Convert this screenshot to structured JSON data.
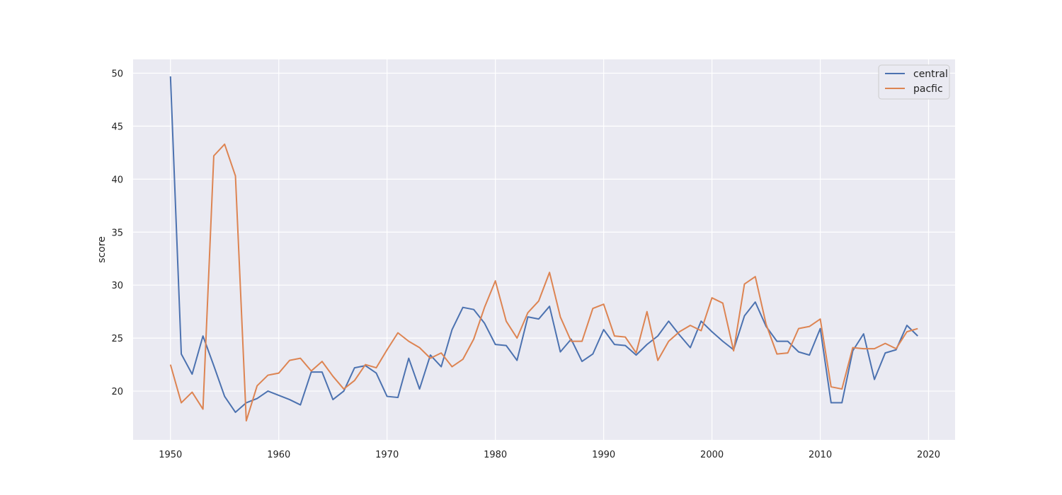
{
  "chart_data": {
    "type": "line",
    "title": "",
    "xlabel": "",
    "ylabel": "score",
    "xlim": [
      1946.55,
      1922.45
    ],
    "ylim": [
      15.4,
      51.3
    ],
    "xticks": [
      1950,
      1960,
      1970,
      1980,
      1990,
      2000,
      2010,
      2020
    ],
    "yticks": [
      20,
      25,
      30,
      35,
      40,
      45,
      50
    ],
    "grid": true,
    "legend": "top-right",
    "background": "#eaeaf2",
    "x": [
      1950,
      1951,
      1952,
      1953,
      1954,
      1955,
      1956,
      1957,
      1958,
      1959,
      1960,
      1961,
      1962,
      1963,
      1964,
      1965,
      1966,
      1967,
      1968,
      1969,
      1970,
      1971,
      1972,
      1973,
      1974,
      1975,
      1976,
      1977,
      1978,
      1979,
      1980,
      1981,
      1982,
      1983,
      1984,
      1985,
      1986,
      1987,
      1988,
      1989,
      1990,
      1991,
      1992,
      1993,
      1994,
      1995,
      1996,
      1997,
      1998,
      1999,
      2000,
      2001,
      2002,
      2003,
      2004,
      2005,
      2006,
      2007,
      2008,
      2009,
      2010,
      2011,
      2012,
      2013,
      2014,
      2015,
      2016,
      2017,
      2018,
      2019
    ],
    "series": [
      {
        "name": "central",
        "color": "#4c72b0",
        "values": [
          49.7,
          23.5,
          21.6,
          25.2,
          22.4,
          19.5,
          18.0,
          18.9,
          19.3,
          20.0,
          19.6,
          19.2,
          18.7,
          21.8,
          21.8,
          19.2,
          20.0,
          22.2,
          22.4,
          21.7,
          19.5,
          19.4,
          23.1,
          20.2,
          23.4,
          22.3,
          25.8,
          27.9,
          27.7,
          26.4,
          24.4,
          24.3,
          22.9,
          27.0,
          26.8,
          28.0,
          23.7,
          24.9,
          22.8,
          23.5,
          25.8,
          24.4,
          24.3,
          23.4,
          24.4,
          25.2,
          26.6,
          25.3,
          24.1,
          26.6,
          25.6,
          24.7,
          23.9,
          27.1,
          28.4,
          26.1,
          24.7,
          24.7,
          23.7,
          23.4,
          25.9,
          18.9,
          18.9,
          23.8,
          25.4,
          21.1,
          23.6,
          23.9,
          26.2,
          25.2
        ]
      },
      {
        "name": "pacfic",
        "color": "#dd8452",
        "values": [
          22.5,
          18.9,
          19.9,
          18.3,
          42.2,
          43.3,
          40.3,
          17.2,
          20.5,
          21.5,
          21.7,
          22.9,
          23.1,
          21.9,
          22.8,
          21.4,
          20.2,
          21.0,
          22.5,
          22.2,
          23.9,
          25.5,
          24.7,
          24.1,
          23.1,
          23.6,
          22.3,
          23.0,
          24.9,
          27.9,
          30.4,
          26.6,
          25.0,
          27.4,
          28.5,
          31.2,
          27.0,
          24.7,
          24.7,
          27.8,
          28.2,
          25.2,
          25.1,
          23.6,
          27.5,
          22.9,
          24.7,
          25.6,
          26.2,
          25.7,
          28.8,
          28.3,
          23.8,
          30.1,
          30.8,
          26.3,
          23.5,
          23.6,
          25.9,
          26.1,
          26.8,
          20.4,
          20.2,
          24.1,
          24.0,
          24.0,
          24.5,
          24.0,
          25.6,
          25.9
        ]
      }
    ]
  }
}
